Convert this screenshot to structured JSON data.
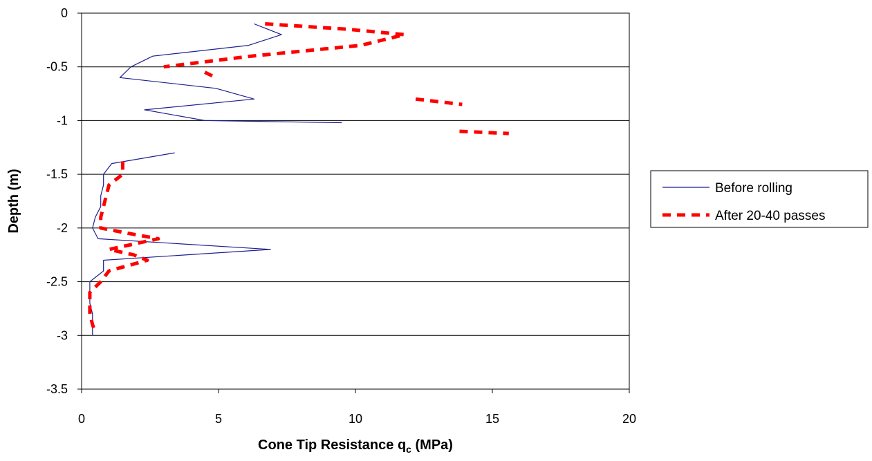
{
  "chart_data": {
    "type": "line",
    "title": "",
    "xlabel": "Cone Tip Resistance q",
    "xlabel_sub": "c",
    "xlabel_suffix": " (MPa)",
    "ylabel": "Depth (m)",
    "xlim": [
      0,
      20
    ],
    "ylim": [
      -3.5,
      0
    ],
    "xticks": [
      "0",
      "5",
      "10",
      "15",
      "20"
    ],
    "yticks": [
      "0",
      "-0.5",
      "-1",
      "-1.5",
      "-2",
      "-2.5",
      "-3",
      "-3.5"
    ],
    "grid": "horizontal",
    "legend_position": "right",
    "series": [
      {
        "name": "Before rolling",
        "color": "#1f1f8f",
        "style": "solid",
        "segments": [
          [
            [
              6.3,
              -0.1
            ],
            [
              7.3,
              -0.2
            ],
            [
              6.1,
              -0.3
            ],
            [
              2.6,
              -0.4
            ],
            [
              1.8,
              -0.5
            ],
            [
              1.4,
              -0.6
            ],
            [
              4.9,
              -0.7
            ],
            [
              6.3,
              -0.8
            ],
            [
              2.3,
              -0.9
            ],
            [
              4.5,
              -1.0
            ],
            [
              9.5,
              -1.02
            ]
          ],
          [
            [
              3.4,
              -1.3
            ],
            [
              1.1,
              -1.4
            ],
            [
              0.8,
              -1.5
            ],
            [
              0.8,
              -1.6
            ],
            [
              0.7,
              -1.7
            ],
            [
              0.7,
              -1.8
            ],
            [
              0.5,
              -1.9
            ],
            [
              0.4,
              -2.0
            ],
            [
              0.6,
              -2.1
            ],
            [
              6.9,
              -2.2
            ],
            [
              0.8,
              -2.3
            ],
            [
              0.8,
              -2.4
            ],
            [
              0.3,
              -2.5
            ],
            [
              0.3,
              -2.6
            ],
            [
              0.3,
              -2.7
            ],
            [
              0.4,
              -2.8
            ],
            [
              0.4,
              -2.9
            ],
            [
              0.4,
              -3.0
            ]
          ]
        ]
      },
      {
        "name": "After 20-40 passes",
        "color": "#ff0000",
        "style": "dashed",
        "segments": [
          [
            [
              6.7,
              -0.1
            ],
            [
              9.7,
              -0.15
            ],
            [
              11.8,
              -0.2
            ],
            [
              10.2,
              -0.3
            ],
            [
              6.2,
              -0.4
            ],
            [
              3.0,
              -0.5
            ]
          ],
          [
            [
              4.5,
              -0.55
            ],
            [
              4.9,
              -0.6
            ]
          ],
          [
            [
              12.2,
              -0.8
            ],
            [
              13.9,
              -0.85
            ]
          ],
          [
            [
              13.8,
              -1.1
            ],
            [
              15.6,
              -1.12
            ]
          ],
          [
            [
              1.5,
              -1.38
            ],
            [
              1.5,
              -1.5
            ],
            [
              1.0,
              -1.6
            ],
            [
              0.9,
              -1.7
            ],
            [
              0.8,
              -1.8
            ],
            [
              0.7,
              -1.9
            ],
            [
              0.7,
              -2.0
            ],
            [
              1.7,
              -2.05
            ],
            [
              2.8,
              -2.1
            ],
            [
              1.0,
              -2.2
            ],
            [
              1.9,
              -2.25
            ],
            [
              2.4,
              -2.3
            ],
            [
              1.0,
              -2.4
            ],
            [
              0.7,
              -2.5
            ],
            [
              0.3,
              -2.6
            ],
            [
              0.3,
              -2.7
            ],
            [
              0.3,
              -2.8
            ],
            [
              0.4,
              -2.9
            ],
            [
              0.5,
              -2.97
            ]
          ]
        ]
      }
    ]
  }
}
